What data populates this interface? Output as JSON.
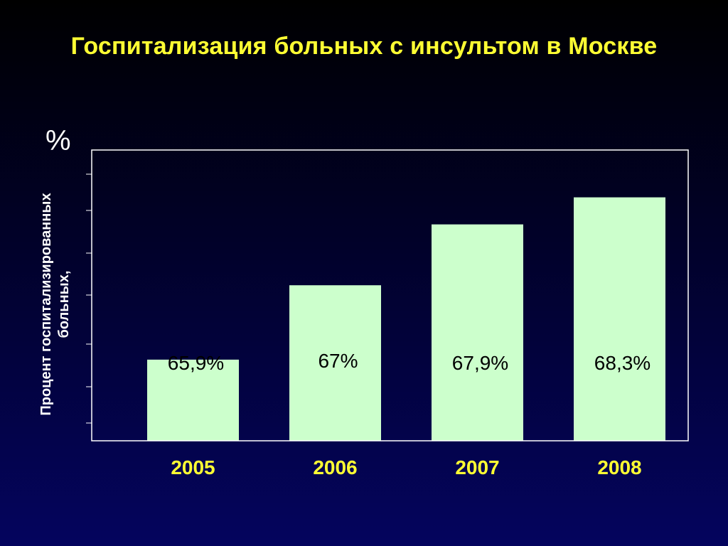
{
  "slide": {
    "title": "Госпитализация больных с инсультом в Москве"
  },
  "chart_data": {
    "type": "bar",
    "title": "Госпитализация больных с инсультом в Москве",
    "ylabel_lines": [
      "Процент госпитализированных",
      "больных,"
    ],
    "yunit": "%",
    "categories": [
      "2005",
      "2006",
      "2007",
      "2008"
    ],
    "values": [
      65.9,
      67,
      67.9,
      68.3
    ],
    "data_labels": [
      "65,9%",
      "67%",
      "67,9%",
      "68,3%"
    ],
    "ylim": [
      64.7,
      69.0
    ],
    "grid": false,
    "colors": {
      "bar": "#ccffcc",
      "title": "#ffff33",
      "category_label": "#ffff33",
      "data_label": "#000000",
      "axis": "#ffffff"
    }
  }
}
